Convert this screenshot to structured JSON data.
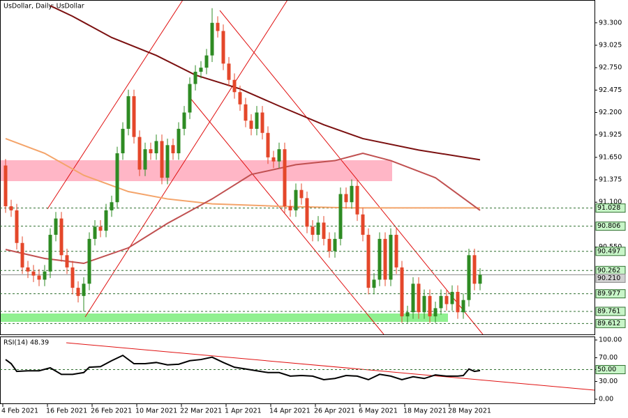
{
  "chart_data": [
    {
      "type": "candlestick",
      "title": "UsDollar, Daily: UsDollar",
      "categories": [
        "4 Feb 2021",
        null,
        null,
        null,
        null,
        null,
        null,
        null,
        "16 Feb 2021",
        null,
        null,
        null,
        null,
        null,
        null,
        null,
        "26 Feb 2021",
        null,
        null,
        null,
        null,
        null,
        null,
        null,
        "10 Mar 2021",
        null,
        null,
        null,
        null,
        null,
        null,
        null,
        "22 Mar 2021",
        null,
        null,
        null,
        null,
        null,
        null,
        null,
        "1 Apr 2021",
        null,
        null,
        null,
        null,
        null,
        null,
        null,
        "14 Apr 2021",
        null,
        null,
        null,
        null,
        null,
        null,
        null,
        "26 Apr 2021",
        null,
        null,
        null,
        null,
        null,
        null,
        null,
        "6 May 2021",
        null,
        null,
        null,
        null,
        null,
        null,
        null,
        "18 May 2021",
        null,
        null,
        null,
        null,
        null,
        null,
        null,
        "28 May 2021",
        null,
        null,
        null,
        null,
        null
      ],
      "open": [
        91.55,
        91.05,
        91.0,
        90.6,
        90.3,
        90.25,
        90.2,
        90.15,
        90.25,
        90.7,
        90.9,
        90.45,
        90.3,
        90.05,
        89.95,
        90.1,
        90.65,
        90.8,
        90.75,
        91.0,
        91.1,
        91.7,
        92.0,
        92.4,
        91.9,
        91.5,
        91.75,
        91.7,
        91.85,
        91.4,
        91.8,
        91.7,
        92.0,
        92.2,
        92.55,
        92.7,
        92.75,
        92.9,
        93.3,
        93.2,
        92.8,
        92.6,
        92.45,
        92.3,
        92.1,
        92.0,
        92.2,
        91.95,
        91.65,
        91.6,
        91.75,
        91.05,
        91.0,
        91.25,
        91.15,
        90.8,
        90.7,
        90.85,
        90.65,
        90.5,
        90.65,
        91.2,
        91.1,
        91.3,
        90.95,
        90.7,
        90.05,
        90.15,
        90.65,
        90.15,
        90.7,
        90.3,
        89.7,
        89.75,
        90.1,
        89.75,
        89.95,
        89.7,
        89.8,
        89.95,
        89.85,
        90.0,
        89.75,
        89.9,
        90.45,
        90.1
      ],
      "high": [
        91.63,
        91.13,
        91.08,
        90.68,
        90.38,
        90.33,
        90.28,
        90.33,
        90.78,
        90.98,
        90.98,
        90.53,
        90.38,
        90.13,
        90.18,
        90.73,
        90.88,
        90.88,
        91.08,
        91.18,
        91.78,
        92.08,
        92.48,
        92.48,
        91.98,
        91.83,
        91.83,
        91.93,
        91.93,
        91.88,
        91.88,
        92.08,
        92.28,
        92.63,
        92.78,
        92.83,
        92.98,
        93.48,
        93.38,
        93.28,
        92.88,
        92.68,
        92.53,
        92.38,
        92.18,
        92.28,
        92.28,
        92.03,
        91.73,
        91.83,
        91.83,
        91.13,
        91.33,
        91.33,
        91.23,
        90.88,
        90.93,
        90.93,
        90.73,
        90.73,
        91.28,
        91.28,
        91.38,
        91.38,
        91.03,
        90.78,
        90.23,
        90.73,
        90.73,
        90.78,
        90.78,
        90.38,
        89.83,
        90.18,
        90.18,
        90.03,
        90.03,
        89.88,
        90.03,
        90.03,
        90.08,
        90.08,
        89.98,
        90.53,
        90.53,
        90.29
      ],
      "low": [
        90.97,
        90.92,
        90.52,
        90.22,
        90.17,
        90.12,
        90.07,
        90.07,
        90.17,
        90.62,
        90.37,
        90.22,
        89.97,
        89.87,
        89.76,
        90.02,
        90.57,
        90.67,
        90.67,
        90.92,
        91.02,
        91.62,
        91.92,
        91.82,
        91.42,
        91.42,
        91.62,
        91.62,
        91.32,
        91.32,
        91.62,
        91.62,
        91.92,
        92.12,
        92.47,
        92.62,
        92.67,
        92.82,
        93.12,
        92.72,
        92.52,
        92.37,
        92.22,
        92.02,
        91.92,
        91.92,
        91.87,
        91.57,
        91.52,
        91.52,
        90.97,
        90.92,
        90.92,
        91.07,
        90.72,
        90.62,
        90.62,
        90.57,
        90.42,
        90.42,
        90.57,
        91.02,
        91.02,
        90.87,
        90.62,
        89.97,
        89.97,
        90.07,
        90.07,
        90.07,
        90.22,
        89.62,
        89.62,
        89.67,
        89.67,
        89.67,
        89.62,
        89.62,
        89.72,
        89.77,
        89.77,
        89.67,
        89.67,
        89.82,
        90.02,
        90.02
      ],
      "close": [
        91.05,
        91.0,
        90.6,
        90.3,
        90.25,
        90.2,
        90.15,
        90.25,
        90.7,
        90.9,
        90.45,
        90.3,
        90.05,
        89.95,
        90.1,
        90.65,
        90.8,
        90.75,
        91.0,
        91.1,
        91.7,
        92.0,
        92.4,
        91.9,
        91.5,
        91.75,
        91.7,
        91.85,
        91.4,
        91.8,
        91.7,
        92.0,
        92.2,
        92.55,
        92.7,
        92.75,
        92.9,
        93.3,
        93.2,
        92.8,
        92.6,
        92.45,
        92.3,
        92.1,
        92.0,
        92.2,
        91.95,
        91.65,
        91.6,
        91.75,
        91.05,
        91.0,
        91.25,
        91.15,
        90.8,
        90.7,
        90.85,
        90.65,
        90.5,
        90.65,
        91.2,
        91.1,
        91.3,
        90.95,
        90.7,
        90.05,
        90.15,
        90.65,
        90.15,
        90.7,
        90.3,
        89.7,
        89.75,
        90.1,
        89.75,
        89.95,
        89.7,
        89.8,
        89.95,
        89.85,
        90.0,
        89.75,
        89.9,
        90.45,
        90.1,
        90.21
      ],
      "up_color": "#2e8b23",
      "down_color": "#e4472a",
      "ylim": [
        89.47,
        93.58
      ],
      "yticks": [
        {
          "value": 93.3,
          "label": "93.300"
        },
        93.025,
        {
          "value": 92.75,
          "label": "92.750"
        },
        92.475,
        {
          "value": 92.2,
          "label": "92.200"
        },
        91.925,
        {
          "value": 91.65,
          "label": "91.650"
        },
        91.375,
        {
          "value": 91.1,
          "label": "91.100"
        },
        {
          "value": 90.55,
          "label": "90.550"
        }
      ],
      "levels": [
        91.028,
        90.806,
        90.497,
        90.262,
        89.977,
        89.761,
        89.612
      ],
      "last_price": {
        "value": 90.21,
        "label": "90.210"
      },
      "moving_averages": [
        {
          "color": "#7b1010",
          "x": [
            8,
            12,
            19,
            27,
            34,
            42,
            49,
            57,
            64,
            74,
            85
          ],
          "values": [
            93.51,
            93.38,
            93.12,
            92.9,
            92.66,
            92.49,
            92.28,
            92.05,
            91.88,
            91.74,
            91.62
          ]
        },
        {
          "color": "#f4a46a",
          "x": [
            0,
            7,
            14,
            22,
            29,
            37,
            49,
            62,
            74,
            85
          ],
          "values": [
            91.88,
            91.7,
            91.43,
            91.23,
            91.14,
            91.08,
            91.05,
            91.03,
            91.03,
            91.03
          ]
        },
        {
          "color": "#c05050",
          "x": [
            0,
            7,
            14,
            22,
            29,
            37,
            44,
            52,
            59,
            64,
            69,
            77,
            85
          ],
          "values": [
            90.52,
            90.41,
            90.35,
            90.54,
            90.84,
            91.14,
            91.44,
            91.56,
            91.61,
            91.7,
            91.61,
            91.4,
            91.0
          ]
        }
      ]
    },
    {
      "type": "line",
      "title": "RSI(14) 48.39",
      "x": [
        0,
        1,
        2,
        4,
        6,
        8,
        10,
        12,
        14,
        15,
        17,
        19,
        21,
        23,
        25,
        27,
        29,
        31,
        33,
        35,
        37,
        39,
        41,
        43,
        45,
        47,
        49,
        51,
        53,
        55,
        57,
        59,
        61,
        63,
        65,
        67,
        69,
        71,
        73,
        75,
        77,
        79,
        81,
        82,
        83,
        84,
        85
      ],
      "values": [
        67,
        60,
        47,
        48,
        48,
        53,
        42,
        42,
        45,
        54,
        55,
        65,
        74,
        60,
        60,
        62,
        58,
        59,
        65,
        67,
        71,
        62,
        54,
        51,
        48,
        45,
        45,
        39,
        40,
        39,
        33,
        35,
        40,
        39,
        33,
        42,
        39,
        33,
        38,
        35,
        41,
        39,
        39,
        40,
        51,
        47,
        48.39
      ],
      "color": "#000000",
      "ylim": [
        -8.2,
        105.9
      ],
      "yticks": [
        {
          "value": 100,
          "label": "100.00"
        },
        {
          "value": 70,
          "label": "70.00"
        },
        {
          "value": 50,
          "label": "50.00"
        },
        {
          "value": 30,
          "label": "30.00"
        },
        {
          "value": 0,
          "label": "0.00"
        }
      ],
      "levels": [
        {
          "value": 50,
          "label": "50.00"
        }
      ]
    }
  ]
}
